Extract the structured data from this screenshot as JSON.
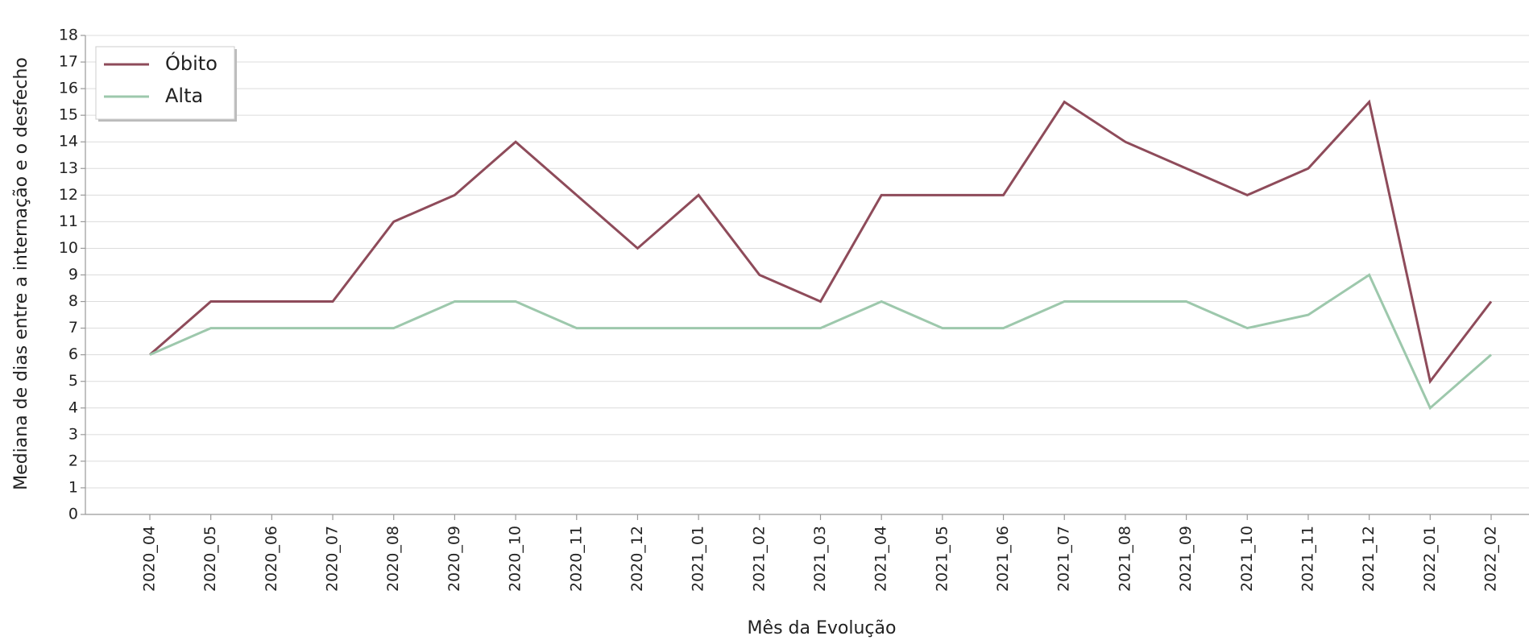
{
  "chart_data": {
    "type": "line",
    "xlabel": "Mês da Evolução",
    "ylabel": "Mediana de dias entre a internação e o desfecho",
    "categories": [
      "2020_04",
      "2020_05",
      "2020_06",
      "2020_07",
      "2020_08",
      "2020_09",
      "2020_10",
      "2020_11",
      "2020_12",
      "2021_01",
      "2021_02",
      "2021_03",
      "2021_04",
      "2021_05",
      "2021_06",
      "2021_07",
      "2021_08",
      "2021_09",
      "2021_10",
      "2021_11",
      "2021_12",
      "2022_01",
      "2022_02"
    ],
    "series": [
      {
        "name": "Óbito",
        "color": "#8e4b5a",
        "values": [
          6,
          8,
          8,
          8,
          11,
          12,
          14,
          12,
          10,
          12,
          9,
          8,
          12,
          12,
          12,
          15.5,
          14,
          13,
          12,
          13,
          15.5,
          5,
          8
        ]
      },
      {
        "name": "Alta",
        "color": "#9dc8ac",
        "values": [
          6,
          7,
          7,
          7,
          7,
          8,
          8,
          7,
          7,
          7,
          7,
          7,
          8,
          7,
          7,
          8,
          8,
          8,
          7,
          7.5,
          9,
          4,
          6
        ]
      }
    ],
    "ylim": [
      0,
      18
    ],
    "yticks": [
      0,
      1,
      2,
      3,
      4,
      5,
      6,
      7,
      8,
      9,
      10,
      11,
      12,
      13,
      14,
      15,
      16,
      17,
      18
    ],
    "grid": true,
    "legend": "upper left"
  }
}
